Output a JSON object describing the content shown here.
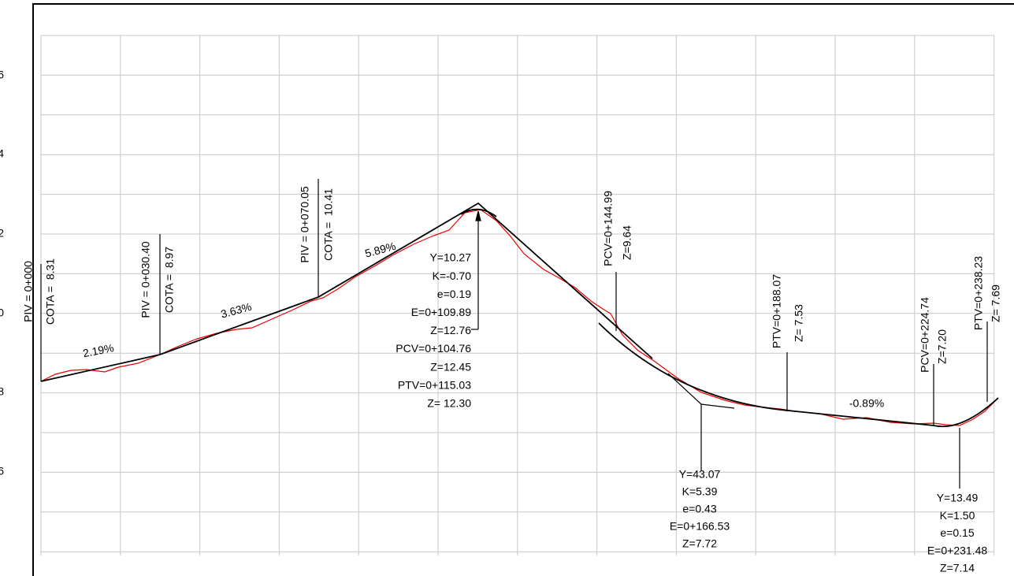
{
  "y_axis_labels": [
    "6",
    "4",
    "2",
    "0",
    "8",
    "6"
  ],
  "piv_labels": [
    [
      "PIV = 0+000",
      "COTA =  8.31"
    ],
    [
      "PIV = 0+030.40",
      "COTA =  8.97"
    ],
    [
      "PIV = 0+070.05",
      "COTA =  10.41"
    ]
  ],
  "point_labels": [
    [
      "PCV=0+144.99",
      "Z=9.64"
    ],
    [
      "PTV=0+188.07",
      "Z= 7.53"
    ],
    [
      "PCV=0+224.74",
      "Z=7.20"
    ],
    [
      "PTV=0+238.23",
      "Z= 7.69"
    ]
  ],
  "slopes": [
    "2.19%",
    "3.63%",
    "5.89%",
    "-0.89%"
  ],
  "curve_blocks": [
    [
      "Y=10.27",
      "K=-0.70",
      "e=0.19",
      "E=0+109.89",
      "Z=12.76",
      "PCV=0+104.76",
      "Z=12.45",
      "PTV=0+115.03",
      "Z= 12.30"
    ],
    [
      "Y=43.07",
      "K=5.39",
      "e=0.43",
      "E=0+166.53",
      "Z=7.72"
    ],
    [
      "Y=13.49",
      "K=1.50",
      "e=0.15",
      "E=0+231.48",
      "Z=7.14"
    ]
  ]
}
